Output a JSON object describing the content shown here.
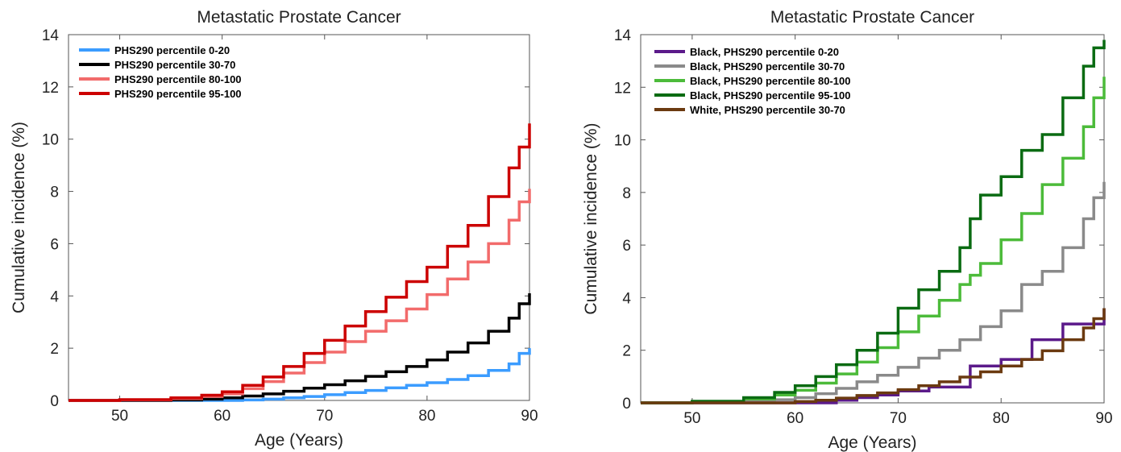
{
  "chart_data": [
    {
      "type": "line",
      "step": true,
      "title": "Metastatic Prostate Cancer",
      "xlabel": "Age (Years)",
      "ylabel": "Cumulative incidence (%)",
      "xlim": [
        45,
        90
      ],
      "ylim": [
        0,
        14
      ],
      "xticks": [
        50,
        60,
        70,
        80,
        90
      ],
      "yticks": [
        0,
        2,
        4,
        6,
        8,
        10,
        12,
        14
      ],
      "grid": false,
      "legend": "top-left",
      "series": [
        {
          "name": "PHS290 percentile 0-20",
          "color": "#3b9cff",
          "x": [
            45,
            50,
            55,
            60,
            62,
            64,
            66,
            68,
            70,
            72,
            74,
            76,
            78,
            80,
            82,
            84,
            86,
            88,
            89,
            90
          ],
          "y": [
            0,
            0,
            0,
            0,
            0.02,
            0.05,
            0.1,
            0.15,
            0.22,
            0.3,
            0.38,
            0.48,
            0.58,
            0.68,
            0.8,
            0.95,
            1.15,
            1.4,
            1.8,
            2.0
          ]
        },
        {
          "name": "PHS290 percentile 30-70",
          "color": "#000000",
          "x": [
            45,
            50,
            55,
            58,
            60,
            62,
            64,
            66,
            68,
            70,
            72,
            74,
            76,
            78,
            80,
            82,
            84,
            86,
            88,
            89,
            90
          ],
          "y": [
            0,
            0,
            0.02,
            0.05,
            0.1,
            0.17,
            0.25,
            0.35,
            0.47,
            0.6,
            0.75,
            0.92,
            1.1,
            1.3,
            1.55,
            1.85,
            2.2,
            2.65,
            3.15,
            3.7,
            4.1
          ]
        },
        {
          "name": "PHS290 percentile 80-100",
          "color": "#f26b6b",
          "x": [
            45,
            50,
            55,
            58,
            60,
            62,
            64,
            66,
            68,
            70,
            72,
            74,
            76,
            78,
            80,
            82,
            84,
            86,
            88,
            89,
            90
          ],
          "y": [
            0,
            0.02,
            0.07,
            0.15,
            0.25,
            0.45,
            0.72,
            1.05,
            1.45,
            1.85,
            2.25,
            2.65,
            3.05,
            3.5,
            4.05,
            4.65,
            5.3,
            6.0,
            6.9,
            7.6,
            8.1
          ]
        },
        {
          "name": "PHS290 percentile 95-100",
          "color": "#cc0000",
          "x": [
            45,
            50,
            55,
            58,
            60,
            62,
            64,
            66,
            68,
            70,
            72,
            74,
            76,
            78,
            80,
            82,
            84,
            86,
            88,
            89,
            90
          ],
          "y": [
            0,
            0.03,
            0.1,
            0.2,
            0.33,
            0.58,
            0.9,
            1.3,
            1.8,
            2.3,
            2.85,
            3.4,
            3.95,
            4.55,
            5.1,
            5.9,
            6.7,
            7.8,
            8.9,
            9.7,
            10.6
          ]
        }
      ]
    },
    {
      "type": "line",
      "step": true,
      "title": "Metastatic Prostate Cancer",
      "xlabel": "Age (Years)",
      "ylabel": "Cumulative incidence (%)",
      "xlim": [
        45,
        90
      ],
      "ylim": [
        0,
        14
      ],
      "xticks": [
        50,
        60,
        70,
        80,
        90
      ],
      "yticks": [
        0,
        2,
        4,
        6,
        8,
        10,
        12,
        14
      ],
      "grid": false,
      "legend": "top-left",
      "series": [
        {
          "name": "Black, PHS290 percentile 0-20",
          "color": "#5b1a8a",
          "x": [
            45,
            60,
            64,
            66,
            68,
            70,
            73,
            77,
            80,
            83,
            86,
            88,
            90
          ],
          "y": [
            0,
            0,
            0.1,
            0.2,
            0.3,
            0.45,
            0.6,
            1.4,
            1.65,
            2.4,
            3.0,
            3.0,
            3.6
          ]
        },
        {
          "name": "Black, PHS290 percentile 30-70",
          "color": "#8a8a8a",
          "x": [
            45,
            50,
            55,
            58,
            60,
            62,
            64,
            66,
            68,
            70,
            72,
            74,
            76,
            78,
            80,
            82,
            84,
            86,
            88,
            89,
            90
          ],
          "y": [
            0,
            0.02,
            0.06,
            0.12,
            0.2,
            0.35,
            0.55,
            0.8,
            1.05,
            1.35,
            1.7,
            2.0,
            2.4,
            2.9,
            3.5,
            4.5,
            5.0,
            5.9,
            7.0,
            7.8,
            8.4
          ]
        },
        {
          "name": "Black, PHS290 percentile 80-100",
          "color": "#4cbb3a",
          "x": [
            45,
            50,
            55,
            58,
            60,
            62,
            64,
            66,
            68,
            70,
            72,
            74,
            76,
            77,
            78,
            80,
            82,
            84,
            86,
            88,
            89,
            90
          ],
          "y": [
            0,
            0.05,
            0.15,
            0.3,
            0.48,
            0.75,
            1.1,
            1.55,
            2.1,
            2.7,
            3.3,
            3.9,
            4.5,
            4.85,
            5.3,
            6.2,
            7.2,
            8.3,
            9.3,
            10.5,
            11.6,
            12.4
          ]
        },
        {
          "name": "Black, PHS290 percentile 95-100",
          "color": "#0a6b12",
          "x": [
            45,
            50,
            55,
            58,
            60,
            62,
            64,
            66,
            68,
            70,
            72,
            74,
            76,
            77,
            78,
            80,
            82,
            84,
            86,
            88,
            89,
            90
          ],
          "y": [
            0,
            0.06,
            0.2,
            0.4,
            0.65,
            1.0,
            1.45,
            2.0,
            2.65,
            3.6,
            4.3,
            5.0,
            5.9,
            7.0,
            7.9,
            8.6,
            9.6,
            10.2,
            11.6,
            12.8,
            13.5,
            13.8
          ]
        },
        {
          "name": "White, PHS290 percentile 30-70",
          "color": "#6b3a10",
          "x": [
            45,
            58,
            60,
            62,
            64,
            66,
            68,
            70,
            72,
            74,
            76,
            78,
            80,
            82,
            84,
            86,
            88,
            89,
            90
          ],
          "y": [
            0,
            0,
            0.05,
            0.1,
            0.18,
            0.28,
            0.38,
            0.5,
            0.65,
            0.8,
            0.98,
            1.18,
            1.4,
            1.65,
            1.98,
            2.4,
            2.85,
            3.2,
            3.6
          ]
        }
      ]
    }
  ]
}
